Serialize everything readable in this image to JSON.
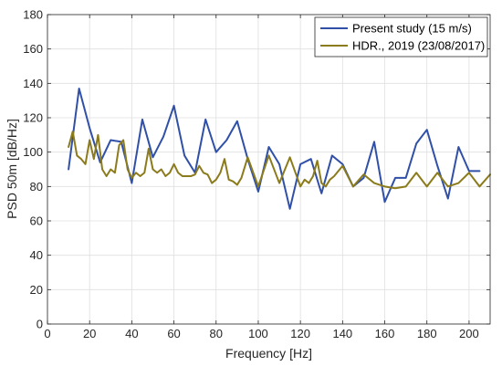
{
  "chart_data": {
    "type": "line",
    "xlabel": "Frequency [Hz]",
    "ylabel": "PSD 50m [dB/Hz]",
    "xlim": [
      0,
      210
    ],
    "ylim": [
      0,
      180
    ],
    "xticks": [
      0,
      20,
      40,
      60,
      80,
      100,
      120,
      140,
      160,
      180,
      200
    ],
    "yticks": [
      0,
      20,
      40,
      60,
      80,
      100,
      120,
      140,
      160,
      180
    ],
    "grid": true,
    "legend_position": "top-right",
    "series": [
      {
        "name": "Present study (15 m/s)",
        "color": "#3050a8",
        "x": [
          10,
          15,
          20,
          25,
          30,
          35,
          40,
          45,
          50,
          55,
          60,
          65,
          70,
          75,
          80,
          85,
          90,
          95,
          100,
          105,
          110,
          115,
          120,
          125,
          130,
          135,
          140,
          145,
          150,
          155,
          160,
          165,
          170,
          175,
          180,
          185,
          190,
          195,
          200,
          205
        ],
        "values": [
          90,
          137,
          114,
          94,
          107,
          106,
          82,
          119,
          97,
          109,
          127,
          98,
          88,
          119,
          100,
          107,
          118,
          96,
          77,
          103,
          93,
          67,
          93,
          96,
          76,
          98,
          93,
          80,
          85,
          106,
          71,
          85,
          85,
          105,
          113,
          92,
          73,
          103,
          89,
          89
        ]
      },
      {
        "name": "HDR., 2019 (23/08/2017)",
        "color": "#8b7b1c",
        "x": [
          10,
          12,
          14,
          16,
          18,
          20,
          22,
          24,
          26,
          28,
          30,
          32,
          34,
          36,
          38,
          40,
          42,
          44,
          46,
          48,
          50,
          52,
          54,
          56,
          58,
          60,
          62,
          64,
          66,
          68,
          70,
          72,
          74,
          76,
          78,
          80,
          82,
          84,
          86,
          88,
          90,
          92,
          95,
          100,
          105,
          110,
          115,
          120,
          122,
          124,
          126,
          128,
          130,
          132,
          134,
          136,
          140,
          145,
          150,
          155,
          160,
          165,
          170,
          175,
          180,
          185,
          190,
          195,
          200,
          205,
          210
        ],
        "values": [
          103,
          112,
          98,
          96,
          93,
          107,
          96,
          110,
          90,
          86,
          90,
          88,
          104,
          107,
          90,
          85,
          88,
          86,
          88,
          102,
          90,
          88,
          90,
          86,
          88,
          93,
          88,
          86,
          86,
          86,
          87,
          92,
          88,
          87,
          82,
          84,
          88,
          96,
          84,
          83,
          81,
          85,
          97,
          80,
          98,
          82,
          97,
          80,
          84,
          82,
          86,
          95,
          82,
          80,
          84,
          86,
          92,
          80,
          87,
          82,
          80,
          79,
          80,
          88,
          80,
          88,
          80,
          82,
          88,
          80,
          87
        ]
      }
    ]
  }
}
